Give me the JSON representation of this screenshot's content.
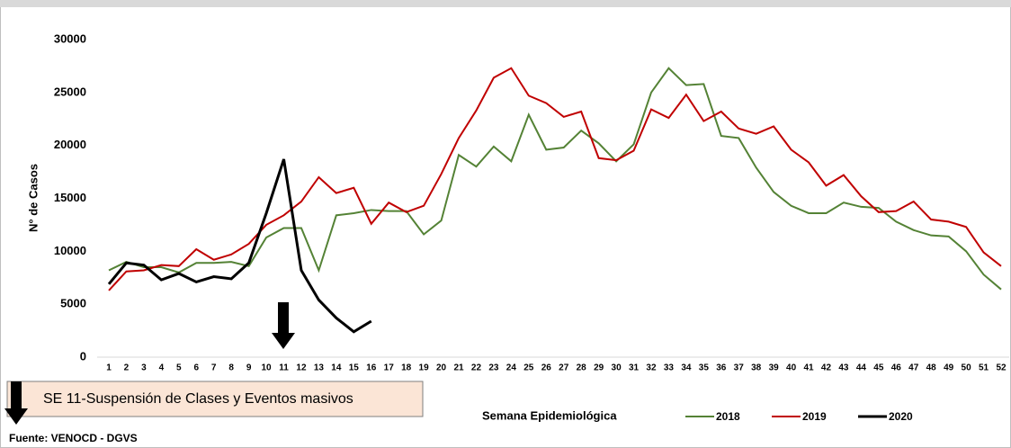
{
  "chart_data": {
    "type": "line",
    "ylabel": "N° de Casos",
    "xlabel": "Semana Epidemiológica",
    "annotation": "SE 11-Suspensión de Clases y Eventos masivos",
    "source": "Fuente: VENOCD - DGVS",
    "categories": [
      "1",
      "2",
      "3",
      "4",
      "5",
      "6",
      "7",
      "8",
      "9",
      "10",
      "11",
      "12",
      "13",
      "14",
      "15",
      "16",
      "17",
      "18",
      "19",
      "20",
      "21",
      "22",
      "23",
      "24",
      "25",
      "26",
      "27",
      "28",
      "29",
      "30",
      "31",
      "32",
      "33",
      "34",
      "35",
      "36",
      "37",
      "38",
      "39",
      "40",
      "41",
      "42",
      "43",
      "44",
      "45",
      "46",
      "47",
      "48",
      "49",
      "50",
      "51",
      "52"
    ],
    "series": [
      {
        "name": "2018",
        "color": "#548235",
        "values": [
          8200,
          9000,
          8500,
          8500,
          8000,
          8900,
          8900,
          9000,
          8600,
          11300,
          12200,
          12200,
          8200,
          13400,
          13600,
          13900,
          13800,
          13800,
          11600,
          12900,
          19100,
          18000,
          19900,
          18500,
          22900,
          19600,
          19800,
          21400,
          20200,
          18500,
          20100,
          25000,
          27300,
          25700,
          25800,
          20900,
          20700,
          17900,
          15600,
          14300,
          13600,
          13600,
          14600,
          14200,
          14100,
          12800,
          12000,
          11500,
          11400,
          10000,
          7800,
          6400
        ]
      },
      {
        "name": "2019",
        "color": "#c00000",
        "values": [
          6300,
          8100,
          8200,
          8700,
          8600,
          10200,
          9200,
          9700,
          10700,
          12500,
          13400,
          14700,
          17000,
          15500,
          16000,
          12600,
          14600,
          13700,
          14300,
          17300,
          20700,
          23300,
          26400,
          27300,
          24700,
          24000,
          22700,
          23200,
          18800,
          18600,
          19500,
          23400,
          22600,
          24800,
          22300,
          23200,
          21600,
          21100,
          21800,
          19600,
          18400,
          16200,
          17200,
          15200,
          13700,
          13800,
          14700,
          13000,
          12800,
          12300,
          9900,
          8600
        ]
      },
      {
        "name": "2020",
        "color": "#000000",
        "values": [
          6900,
          8900,
          8700,
          7300,
          7900,
          7100,
          7600,
          7400,
          8900,
          13600,
          18700,
          8200,
          5400,
          3700,
          2400,
          3400,
          null,
          null,
          null,
          null,
          null,
          null,
          null,
          null,
          null,
          null,
          null,
          null,
          null,
          null,
          null,
          null,
          null,
          null,
          null,
          null,
          null,
          null,
          null,
          null,
          null,
          null,
          null,
          null,
          null,
          null,
          null,
          null,
          null,
          null,
          null,
          null
        ]
      }
    ],
    "ylim": [
      0,
      30000
    ],
    "yticks": [
      0,
      5000,
      10000,
      15000,
      20000,
      25000,
      30000
    ]
  }
}
